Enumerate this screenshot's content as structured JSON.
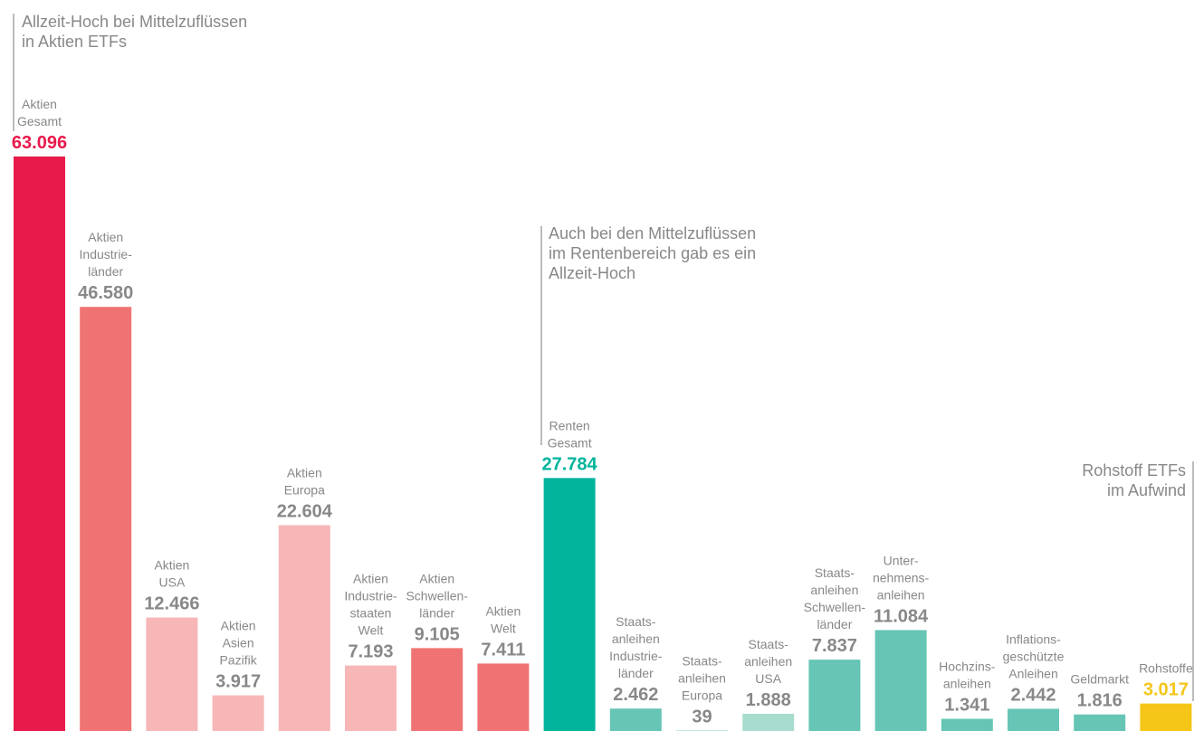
{
  "chart_data": {
    "type": "bar",
    "categories": [
      "Aktien\nGesamt",
      "Aktien\nIndustrie-\nländer",
      "Aktien\nUSA",
      "Aktien\nAsien\nPazifik",
      "Aktien\nEuropa",
      "Aktien\nIndustrie-\nstaaten\nWelt",
      "Aktien\nSchwellen-\nländer",
      "Aktien\nWelt",
      "Renten\nGesamt",
      "Staats-\nanleihen\nIndustrie-\nländer",
      "Staats-\nanleihen\nEuropa",
      "Staats-\nanleihen\nUSA",
      "Staats-\nanleihen\nSchwellen-\nländer",
      "Unter-\nnehmens-\nanleihen",
      "Hochzins-\nanleihen",
      "Inflations-\ngeschützte\nAnleihen",
      "Geldmarkt",
      "Rohstoffe"
    ],
    "values": [
      63096,
      46580,
      12466,
      3917,
      22604,
      7193,
      9105,
      7411,
      27784,
      2462,
      39,
      1888,
      7837,
      11084,
      1341,
      2442,
      1816,
      3017
    ],
    "value_labels": [
      "63.096",
      "46.580",
      "12.466",
      "3.917",
      "22.604",
      "7.193",
      "9.105",
      "7.411",
      "27.784",
      "2.462",
      "39",
      "1.888",
      "7.837",
      "11.084",
      "1.341",
      "2.442",
      "1.816",
      "3.017"
    ],
    "colors": [
      "#e8194b",
      "#f07373",
      "#f7b7b7",
      "#f7b7b7",
      "#f7b7b7",
      "#f7b7b7",
      "#f07373",
      "#f07373",
      "#00b49c",
      "#66c5b5",
      "#66c5b5",
      "#a7dccf",
      "#66c5b5",
      "#66c5b5",
      "#66c5b5",
      "#66c5b5",
      "#66c5b5",
      "#f5c518"
    ],
    "label_colors": [
      "#e8194b",
      "#888888",
      "#888888",
      "#888888",
      "#888888",
      "#888888",
      "#888888",
      "#888888",
      "#00b49c",
      "#888888",
      "#888888",
      "#888888",
      "#888888",
      "#888888",
      "#888888",
      "#888888",
      "#888888",
      "#f5c518"
    ],
    "annotations": [
      "Allzeit-Hoch bei Mittelzuflüssen\nin Aktien ETFs",
      "Auch bei den Mittelzuflüssen\nim Rentenbereich gab es ein\nAllzeit-Hoch",
      "Rohstoff ETFs\nim Aufwind"
    ]
  }
}
